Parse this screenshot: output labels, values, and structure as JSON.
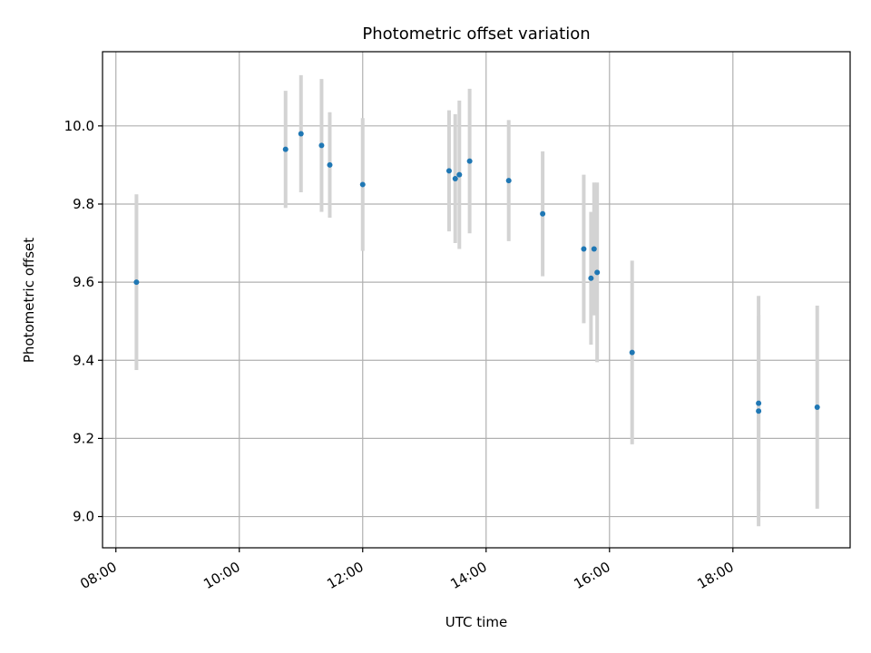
{
  "chart_data": {
    "type": "scatter",
    "title": "Photometric offset variation",
    "xlabel": "UTC time",
    "ylabel": "Photometric offset",
    "x_ticks": [
      "08:00",
      "10:00",
      "12:00",
      "14:00",
      "16:00",
      "18:00"
    ],
    "y_ticks": [
      "9.0",
      "9.2",
      "9.4",
      "9.6",
      "9.8",
      "10.0"
    ],
    "xlim": [
      "07:47",
      "19:54"
    ],
    "ylim": [
      8.92,
      10.19
    ],
    "grid": true,
    "colors": {
      "marker": "#1f77b4",
      "errorbar": "#d3d3d3",
      "grid": "#b0b0b0"
    },
    "points": [
      {
        "x": "08:20",
        "y": 9.6,
        "yerr": 0.225
      },
      {
        "x": "10:45",
        "y": 9.94,
        "yerr": 0.15
      },
      {
        "x": "11:00",
        "y": 9.98,
        "yerr": 0.15
      },
      {
        "x": "11:20",
        "y": 9.95,
        "yerr": 0.17
      },
      {
        "x": "11:28",
        "y": 9.9,
        "yerr": 0.135
      },
      {
        "x": "12:00",
        "y": 9.85,
        "yerr": 0.17
      },
      {
        "x": "13:24",
        "y": 9.885,
        "yerr": 0.155
      },
      {
        "x": "13:30",
        "y": 9.865,
        "yerr": 0.165
      },
      {
        "x": "13:34",
        "y": 9.875,
        "yerr": 0.19
      },
      {
        "x": "13:44",
        "y": 9.91,
        "yerr": 0.185
      },
      {
        "x": "14:22",
        "y": 9.86,
        "yerr": 0.155
      },
      {
        "x": "14:55",
        "y": 9.775,
        "yerr": 0.16
      },
      {
        "x": "15:35",
        "y": 9.685,
        "yerr": 0.19
      },
      {
        "x": "15:42",
        "y": 9.61,
        "yerr": 0.17
      },
      {
        "x": "15:45",
        "y": 9.685,
        "yerr": 0.17
      },
      {
        "x": "15:48",
        "y": 9.625,
        "yerr": 0.23
      },
      {
        "x": "16:22",
        "y": 9.42,
        "yerr": 0.235
      },
      {
        "x": "18:25",
        "y": 9.29,
        "yerr": 0.225
      },
      {
        "x": "18:25",
        "y": 9.27,
        "yerr": 0.295
      },
      {
        "x": "19:22",
        "y": 9.28,
        "yerr": 0.26
      }
    ]
  }
}
